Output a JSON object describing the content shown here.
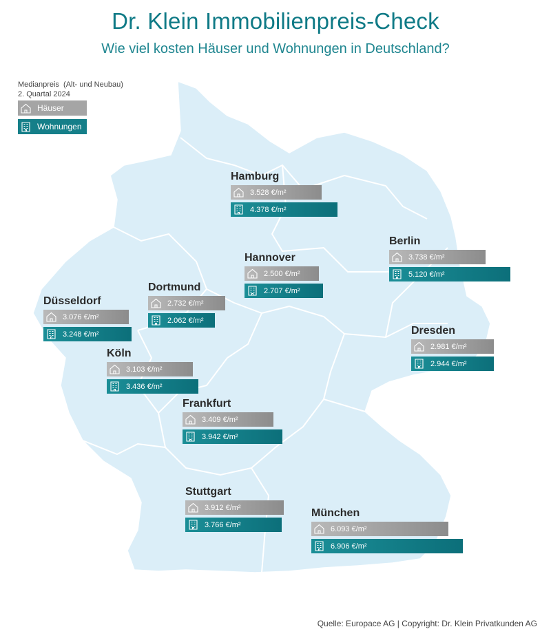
{
  "title": "Dr. Klein Immobilienpreis-Check",
  "subtitle": "Wie viel kosten Häuser und Wohnungen in Deutschland?",
  "legend": {
    "line1": "Medianpreis  (Alt- und Neubau)",
    "line2": "2. Quartal 2024",
    "houses_label": "Häuser",
    "flats_label": "Wohnungen"
  },
  "colors": {
    "map_fill": "#dbeef8",
    "house_bar": "#9b9b9b",
    "flat_bar": "#157f89",
    "title": "#0f7a86"
  },
  "icons": {
    "house": "house-icon",
    "flat": "apartment-building-icon"
  },
  "cities": [
    {
      "name": "Hamburg",
      "house": "3.528 €/m²",
      "flat": "4.378 €/m²",
      "house_value": 3528,
      "flat_value": 4378
    },
    {
      "name": "Berlin",
      "house": "3.738 €/m²",
      "flat": "5.120 €/m²",
      "house_value": 3738,
      "flat_value": 5120
    },
    {
      "name": "Hannover",
      "house": "2.500 €/m²",
      "flat": "2.707 €/m²",
      "house_value": 2500,
      "flat_value": 2707
    },
    {
      "name": "Dortmund",
      "house": "2.732 €/m²",
      "flat": "2.062 €/m²",
      "house_value": 2732,
      "flat_value": 2062
    },
    {
      "name": "Düsseldorf",
      "house": "3.076 €/m²",
      "flat": "3.248 €/m²",
      "house_value": 3076,
      "flat_value": 3248
    },
    {
      "name": "Dresden",
      "house": "2.981 €/m²",
      "flat": "2.944 €/m²",
      "house_value": 2981,
      "flat_value": 2944
    },
    {
      "name": "Köln",
      "house": "3.103 €/m²",
      "flat": "3.436 €/m²",
      "house_value": 3103,
      "flat_value": 3436
    },
    {
      "name": "Frankfurt",
      "house": "3.409 €/m²",
      "flat": "3.942 €/m²",
      "house_value": 3409,
      "flat_value": 3942
    },
    {
      "name": "Stuttgart",
      "house": "3.912 €/m²",
      "flat": "3.766 €/m²",
      "house_value": 3912,
      "flat_value": 3766
    },
    {
      "name": "München",
      "house": "6.093 €/m²",
      "flat": "6.906 €/m²",
      "house_value": 6093,
      "flat_value": 6906
    }
  ],
  "source": "Quelle: Europace AG | Copyright: Dr. Klein Privatkunden AG"
}
